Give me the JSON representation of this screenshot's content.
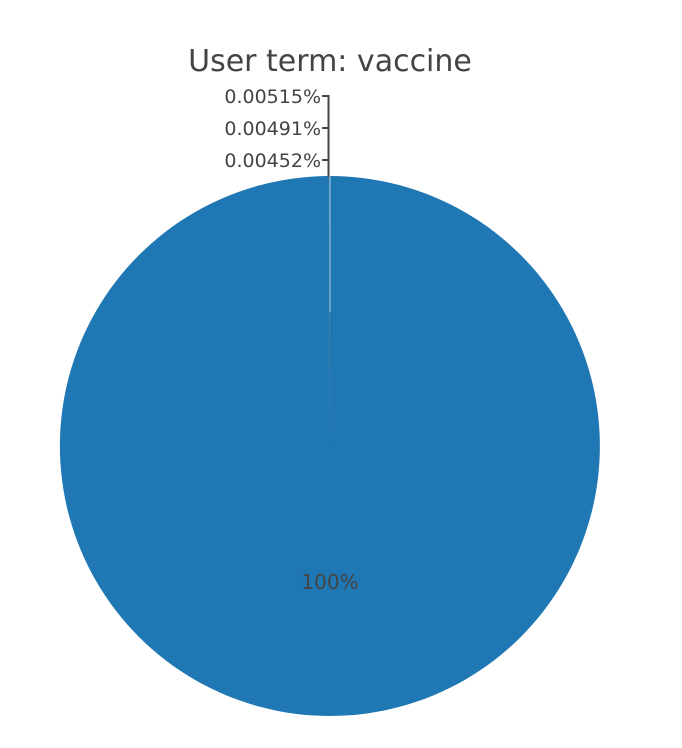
{
  "chart_data": {
    "type": "pie",
    "title": "User term: vaccine",
    "slices": [
      {
        "percent": 100,
        "label": "100%",
        "color": "#1f77b4"
      },
      {
        "percent": 0.00515,
        "label": "0.00515%",
        "color": "#ff7f0e"
      },
      {
        "percent": 0.00491,
        "label": "0.00491%",
        "color": "#2ca02c"
      },
      {
        "percent": 0.00452,
        "label": "0.00452%",
        "color": "#d62728"
      }
    ],
    "line_color": "#444444",
    "slice_border_color": "#ffffff"
  }
}
